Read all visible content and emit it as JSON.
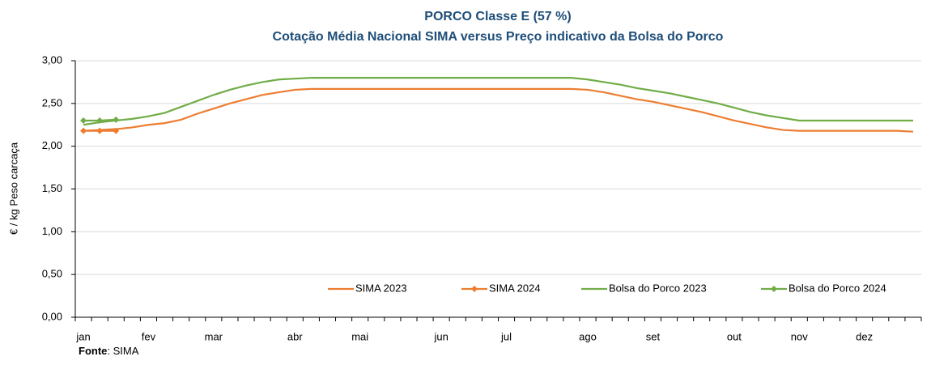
{
  "chart_data": {
    "type": "line",
    "title": "PORCO Classe E (57 %)",
    "subtitle": "Cotação Média Nacional SIMA versus Preço indicativo da Bolsa do Porco",
    "y_label": "€ / kg Peso carcaça",
    "source_label": "Fonte",
    "source": ": SIMA",
    "categories": [
      "jan",
      null,
      null,
      null,
      "fev",
      null,
      null,
      null,
      "mar",
      null,
      null,
      null,
      null,
      "abr",
      null,
      null,
      null,
      "mai",
      null,
      null,
      null,
      null,
      "jun",
      null,
      null,
      null,
      "jul",
      null,
      null,
      null,
      null,
      "ago",
      null,
      null,
      null,
      "set",
      null,
      null,
      null,
      null,
      "out",
      null,
      null,
      null,
      "nov",
      null,
      null,
      null,
      "dez",
      null,
      null,
      null
    ],
    "series": [
      {
        "name": "SIMA 2023",
        "color": "#ed7d31",
        "marker": "none",
        "values": [
          2.18,
          2.19,
          2.2,
          2.22,
          2.25,
          2.27,
          2.31,
          2.38,
          2.44,
          2.5,
          2.55,
          2.6,
          2.63,
          2.66,
          2.67,
          2.67,
          2.67,
          2.67,
          2.67,
          2.67,
          2.67,
          2.67,
          2.67,
          2.67,
          2.67,
          2.67,
          2.67,
          2.67,
          2.67,
          2.67,
          2.67,
          2.66,
          2.63,
          2.59,
          2.55,
          2.52,
          2.48,
          2.44,
          2.4,
          2.35,
          2.3,
          2.26,
          2.22,
          2.19,
          2.18,
          2.18,
          2.18,
          2.18,
          2.18,
          2.18,
          2.18,
          2.17
        ]
      },
      {
        "name": "SIMA 2024",
        "color": "#ed7d31",
        "marker": "diamond",
        "values": [
          2.18,
          2.18,
          2.18,
          null,
          null,
          null,
          null,
          null,
          null,
          null,
          null,
          null,
          null,
          null,
          null,
          null,
          null,
          null,
          null,
          null,
          null,
          null,
          null,
          null,
          null,
          null,
          null,
          null,
          null,
          null,
          null,
          null,
          null,
          null,
          null,
          null,
          null,
          null,
          null,
          null,
          null,
          null,
          null,
          null,
          null,
          null,
          null,
          null,
          null,
          null,
          null,
          null
        ]
      },
      {
        "name": "Bolsa do Porco 2023",
        "color": "#70ad47",
        "marker": "none",
        "values": [
          2.25,
          2.28,
          2.3,
          2.32,
          2.35,
          2.39,
          2.46,
          2.53,
          2.6,
          2.66,
          2.71,
          2.75,
          2.78,
          2.79,
          2.8,
          2.8,
          2.8,
          2.8,
          2.8,
          2.8,
          2.8,
          2.8,
          2.8,
          2.8,
          2.8,
          2.8,
          2.8,
          2.8,
          2.8,
          2.8,
          2.8,
          2.78,
          2.75,
          2.72,
          2.68,
          2.65,
          2.62,
          2.58,
          2.54,
          2.5,
          2.45,
          2.4,
          2.36,
          2.33,
          2.3,
          2.3,
          2.3,
          2.3,
          2.3,
          2.3,
          2.3,
          2.3
        ]
      },
      {
        "name": "Bolsa do Porco 2024",
        "color": "#70ad47",
        "marker": "diamond",
        "values": [
          2.3,
          2.3,
          2.31,
          null,
          null,
          null,
          null,
          null,
          null,
          null,
          null,
          null,
          null,
          null,
          null,
          null,
          null,
          null,
          null,
          null,
          null,
          null,
          null,
          null,
          null,
          null,
          null,
          null,
          null,
          null,
          null,
          null,
          null,
          null,
          null,
          null,
          null,
          null,
          null,
          null,
          null,
          null,
          null,
          null,
          null,
          null,
          null,
          null,
          null,
          null,
          null,
          null
        ]
      }
    ],
    "ylim": [
      0,
      3
    ],
    "yticks": [
      {
        "value": 0,
        "label": "0,00"
      },
      {
        "value": 0.5,
        "label": "0,50"
      },
      {
        "value": 1,
        "label": "1,00"
      },
      {
        "value": 1.5,
        "label": "1,50"
      },
      {
        "value": 2,
        "label": "2,00"
      },
      {
        "value": 2.5,
        "label": "2,50"
      },
      {
        "value": 3,
        "label": "3,00"
      }
    ],
    "grid": true,
    "legend": "bottom"
  }
}
